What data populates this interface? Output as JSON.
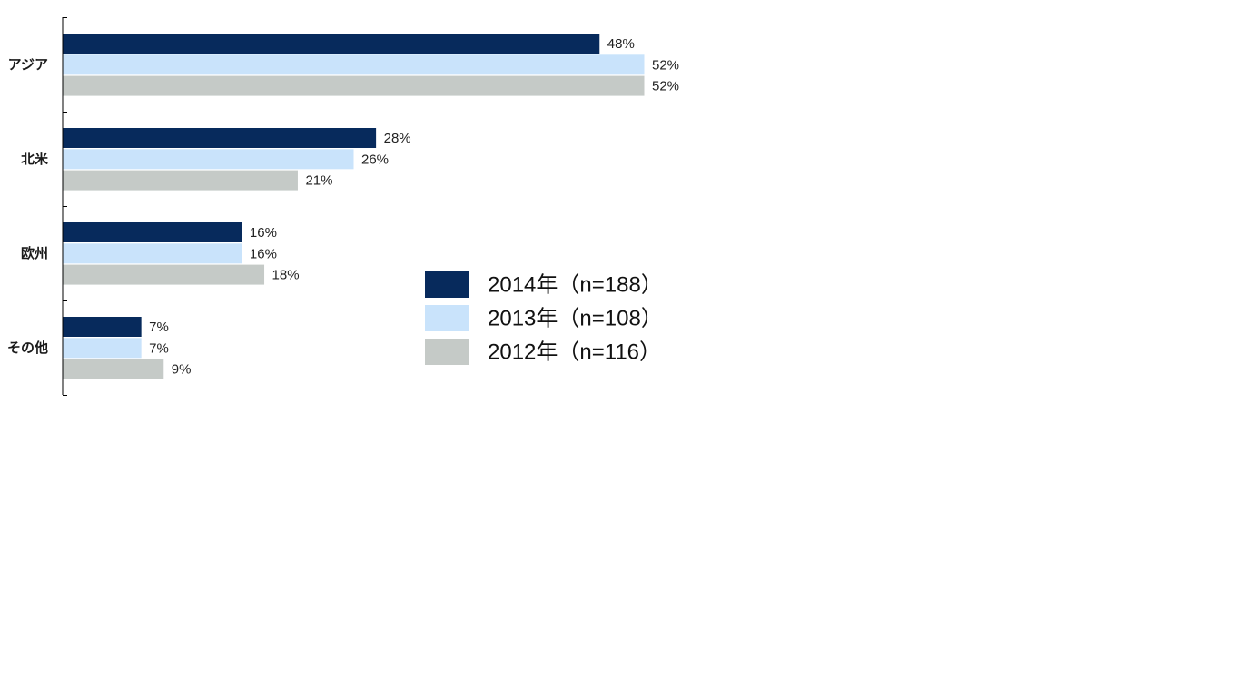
{
  "chart_data": {
    "type": "bar",
    "orientation": "horizontal",
    "categories": [
      "アジア",
      "北米",
      "欧州",
      "その他"
    ],
    "series": [
      {
        "name": "2014年（n=188）",
        "color": "#072A5C",
        "values": [
          48,
          28,
          16,
          7
        ],
        "labels": [
          "48%",
          "28%",
          "16%",
          "7%"
        ]
      },
      {
        "name": "2013年（n=108）",
        "color": "#C9E3FB",
        "values": [
          52,
          26,
          16,
          7
        ],
        "labels": [
          "52%",
          "26%",
          "16%",
          "7%"
        ]
      },
      {
        "name": "2012年（n=116）",
        "color": "#C5CAC7",
        "values": [
          52,
          21,
          18,
          9
        ],
        "labels": [
          "52%",
          "21%",
          "18%",
          "9%"
        ]
      }
    ],
    "unit": "%",
    "xlim": [
      0,
      100
    ],
    "grid": false,
    "legend_position": "right"
  }
}
